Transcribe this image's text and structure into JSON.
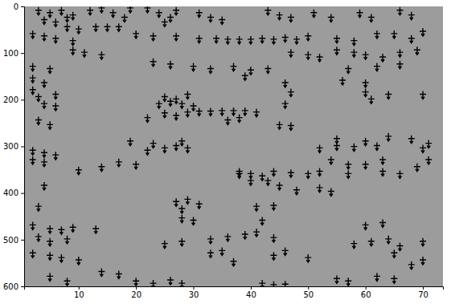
{
  "chart_data": {
    "type": "scatter",
    "marker": "arrow",
    "color": "#000000",
    "xlim": [
      0.5,
      73.5
    ],
    "xticks": [
      10,
      20,
      30,
      40,
      50,
      60,
      70
    ],
    "ylim": [
      0,
      600
    ],
    "yticks": [
      0,
      100,
      200,
      300,
      400,
      500,
      600
    ],
    "x": [
      3,
      5,
      7,
      9,
      4,
      6,
      8,
      12,
      14,
      16,
      18,
      19,
      22,
      24,
      26,
      25,
      27,
      31,
      33,
      35,
      43,
      45,
      47,
      51,
      54,
      59,
      61,
      66,
      68,
      8,
      10,
      13,
      15,
      17,
      2,
      4,
      6,
      9,
      20,
      23,
      27,
      31,
      34,
      36,
      38,
      40,
      42,
      44,
      46,
      48,
      50,
      55,
      58,
      62,
      65,
      68,
      70,
      9,
      11,
      14,
      47,
      50,
      52,
      55,
      58,
      60,
      63,
      66,
      69,
      2,
      5,
      23,
      26,
      30,
      33,
      37,
      40,
      43,
      57,
      62,
      66,
      2,
      4,
      39,
      46,
      56,
      60,
      2,
      3,
      6,
      25,
      27,
      29,
      47,
      60,
      64,
      70,
      61,
      4,
      6,
      24,
      26,
      28,
      30,
      46,
      29,
      31,
      33,
      35,
      37,
      39,
      41,
      25,
      27,
      3,
      5,
      22,
      36,
      38,
      45,
      47,
      19,
      23,
      28,
      55,
      60,
      64,
      68,
      71,
      2,
      4,
      6,
      22,
      25,
      27,
      29,
      52,
      55,
      58,
      62,
      70,
      2,
      4,
      10,
      14,
      17,
      20,
      38,
      54,
      57,
      60,
      63,
      69,
      71,
      38,
      40,
      42,
      44,
      40,
      43,
      47,
      50,
      52,
      57,
      63,
      66,
      45,
      48,
      52,
      54,
      4,
      27,
      29,
      31,
      28,
      3,
      41,
      44,
      2,
      5,
      7,
      9,
      13,
      28,
      30,
      42,
      60,
      63,
      3,
      5,
      8,
      25,
      28,
      33,
      36,
      39,
      41,
      44,
      58,
      61,
      64,
      66,
      70,
      2,
      5,
      7,
      10,
      33,
      35,
      37,
      44,
      46,
      50,
      65,
      68,
      70,
      5,
      8,
      14,
      17,
      20,
      23,
      26,
      28,
      42,
      44,
      46,
      55,
      57,
      62,
      65
    ],
    "y": [
      10,
      15,
      10,
      20,
      30,
      35,
      25,
      10,
      5,
      15,
      25,
      5,
      5,
      15,
      25,
      35,
      10,
      15,
      25,
      30,
      10,
      20,
      25,
      15,
      25,
      15,
      25,
      10,
      20,
      45,
      50,
      45,
      45,
      45,
      60,
      65,
      70,
      75,
      60,
      65,
      65,
      70,
      70,
      72,
      72,
      72,
      70,
      72,
      68,
      72,
      65,
      70,
      75,
      60,
      60,
      70,
      55,
      95,
      100,
      105,
      100,
      105,
      110,
      95,
      100,
      105,
      110,
      100,
      95,
      130,
      135,
      120,
      125,
      130,
      135,
      130,
      138,
      135,
      135,
      130,
      125,
      155,
      165,
      150,
      165,
      160,
      165,
      180,
      195,
      190,
      195,
      200,
      190,
      185,
      185,
      190,
      190,
      200,
      210,
      215,
      210,
      205,
      210,
      215,
      210,
      228,
      226,
      226,
      225,
      225,
      225,
      228,
      230,
      235,
      245,
      255,
      240,
      245,
      240,
      255,
      257,
      290,
      295,
      290,
      285,
      290,
      280,
      285,
      295,
      310,
      315,
      320,
      310,
      305,
      300,
      305,
      305,
      300,
      302,
      300,
      305,
      330,
      335,
      352,
      345,
      335,
      340,
      355,
      330,
      340,
      340,
      330,
      345,
      330,
      360,
      360,
      365,
      355,
      375,
      375,
      358,
      360,
      355,
      360,
      355,
      360,
      385,
      395,
      390,
      398,
      385,
      420,
      415,
      425,
      435,
      430,
      430,
      428,
      470,
      478,
      480,
      475,
      478,
      455,
      460,
      460,
      470,
      465,
      495,
      505,
      500,
      510,
      505,
      500,
      495,
      490,
      485,
      497,
      510,
      505,
      500,
      515,
      505,
      530,
      535,
      540,
      545,
      530,
      525,
      548,
      535,
      525,
      540,
      530,
      555,
      545,
      580,
      590,
      570,
      575,
      590,
      595,
      588,
      595,
      595,
      598,
      597,
      585,
      590,
      580,
      585
    ]
  }
}
